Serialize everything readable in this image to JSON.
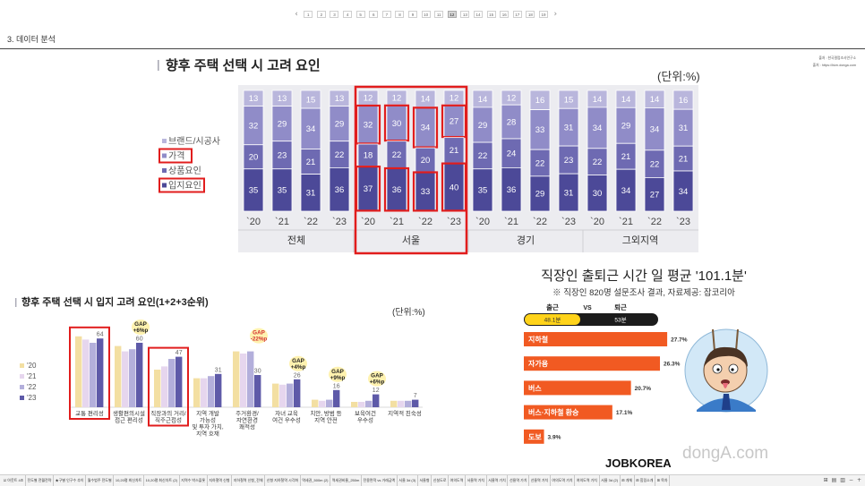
{
  "pagination": {
    "prev_icon": "chevron-left-icon",
    "next_icon": "chevron-right-icon",
    "pages": [
      "1",
      "2",
      "3",
      "4",
      "5",
      "6",
      "7",
      "8",
      "9",
      "10",
      "11",
      "12",
      "13",
      "14",
      "15",
      "16",
      "17",
      "18",
      "19"
    ],
    "current": "12"
  },
  "section": {
    "title": "3. 데이터 분석"
  },
  "source_note": [
    "출처 : 한국갤럽조사연구소",
    "출처 : https://bizn.donga.com"
  ],
  "chart_data": [
    {
      "type": "bar",
      "stacked": true,
      "title": "향후 주택 선택 시 고려 요인",
      "unit": "(단위:%)",
      "groups": [
        "전체",
        "서울",
        "경기",
        "그외지역"
      ],
      "years": [
        "`20",
        "`21",
        "`22",
        "`23"
      ],
      "series": [
        {
          "name": "브랜드/시공사",
          "color": "#b9b6dc",
          "values": [
            13,
            13,
            15,
            13,
            12,
            12,
            14,
            12,
            14,
            12,
            16,
            15,
            14,
            14,
            14,
            16
          ]
        },
        {
          "name": "가격",
          "color": "#908cc8",
          "values": [
            32,
            29,
            34,
            29,
            32,
            30,
            34,
            27,
            29,
            28,
            33,
            31,
            34,
            29,
            34,
            31
          ]
        },
        {
          "name": "상품요인",
          "color": "#6e6ab2",
          "values": [
            20,
            23,
            21,
            22,
            18,
            22,
            20,
            21,
            22,
            24,
            22,
            23,
            22,
            21,
            22,
            21
          ]
        },
        {
          "name": "입지요인",
          "color": "#4c4998",
          "values": [
            35,
            35,
            31,
            36,
            37,
            36,
            33,
            40,
            35,
            36,
            29,
            31,
            30,
            34,
            27,
            34
          ]
        }
      ]
    },
    {
      "type": "bar",
      "title": "향후 주택 선택 시 입지 고려 요인(1+2+3순위)",
      "unit": "(단위:%)",
      "ylim": [
        0,
        70
      ],
      "categories": [
        [
          "교통 편리성"
        ],
        [
          "생활편의시설",
          "접근 편리성"
        ],
        [
          "직장과의 거리/",
          "직주근접성"
        ],
        [
          "지역 개발",
          "가능성",
          "및 투자 가치,",
          "지역 호재"
        ],
        [
          "주거환경/",
          "자연환경",
          "쾌적성"
        ],
        [
          "자녀 교육",
          "여건 우수성"
        ],
        [
          "치안, 방범 등",
          "지역 안전"
        ],
        [
          "보육여건",
          "우수성"
        ],
        [
          "지역적 친숙성"
        ]
      ],
      "series": [
        {
          "name": "'20",
          "color": "#f3dfa2",
          "values": [
            66,
            57,
            35,
            27,
            52,
            22,
            7,
            5,
            6
          ]
        },
        {
          "name": "'21",
          "color": "#e6d6ee",
          "values": [
            63,
            52,
            38,
            27,
            50,
            21,
            6,
            5,
            6
          ]
        },
        {
          "name": "'22",
          "color": "#b3afdb",
          "values": [
            60,
            54,
            45,
            29,
            52,
            22,
            7,
            6,
            6
          ]
        },
        {
          "name": "'23",
          "color": "#5e5aa8",
          "values": [
            64,
            60,
            47,
            31,
            30,
            26,
            16,
            12,
            7
          ]
        }
      ],
      "annotations": [
        {
          "category": 1,
          "lines": [
            "GAP",
            "+6%p"
          ],
          "color": "#222222"
        },
        {
          "category": 4,
          "lines": [
            "GAP",
            "-22%p"
          ],
          "color": "#d32f2f"
        },
        {
          "category": 5,
          "lines": [
            "GAP",
            "+4%p"
          ],
          "color": "#222222"
        },
        {
          "category": 6,
          "lines": [
            "GAP",
            "+9%p"
          ],
          "color": "#222222"
        },
        {
          "category": 7,
          "lines": [
            "GAP",
            "+6%p"
          ],
          "color": "#222222"
        }
      ]
    },
    {
      "type": "bar",
      "orientation": "horizontal",
      "title": "직장인 출퇴근 시간 일 평균 '101.1분'",
      "subtitle": "※ 직장인 820명 설문조사 결과, 자료제공: 잡코리아",
      "categories": [
        "지하철",
        "자가용",
        "버스",
        "버스·지하철 환승",
        "도보"
      ],
      "values": [
        27.7,
        26.3,
        20.7,
        17.1,
        3.9
      ],
      "unit": "%",
      "color": "#f15a22",
      "commute": {
        "to_work_label": "출근",
        "vs": "VS",
        "from_work_label": "퇴근",
        "to_work_value": "48.1분",
        "from_work_value": "53분"
      },
      "logo": "JOBKOREA",
      "watermark": "dongA.com"
    }
  ],
  "tab_bar": {
    "tabs": [
      "☑ 아웃트 4조",
      "전도별 전월전략",
      "★구별 인구수 추이",
      "월수범주 전도별",
      "10,20평 최신차트",
      "10,20평 최신차트 (2)",
      "지역수 박스플롯",
      "지하철역 신형",
      "지하철역 신형_전체",
      "신형 지하철역 시각화",
      "역세권_500m (2)",
      "역세권비율_250m",
      "전용면적 vs 거래금액",
      "서울 3d (3)",
      "서울형",
      "신설도로",
      "여의도역",
      "서울역 가치",
      "서울역 가치",
      "선릉역 가치",
      "선릉역 가치",
      "여의도역 가치",
      "여의도역 가치",
      "서울 3d (2)",
      "⊞ 개체",
      "⊞ 힘링소개",
      "⊞ 목차"
    ],
    "icons": [
      "grid-view-icon",
      "page-layout-icon",
      "page-break-icon",
      "zoom-out-icon",
      "zoom-in-icon"
    ]
  }
}
